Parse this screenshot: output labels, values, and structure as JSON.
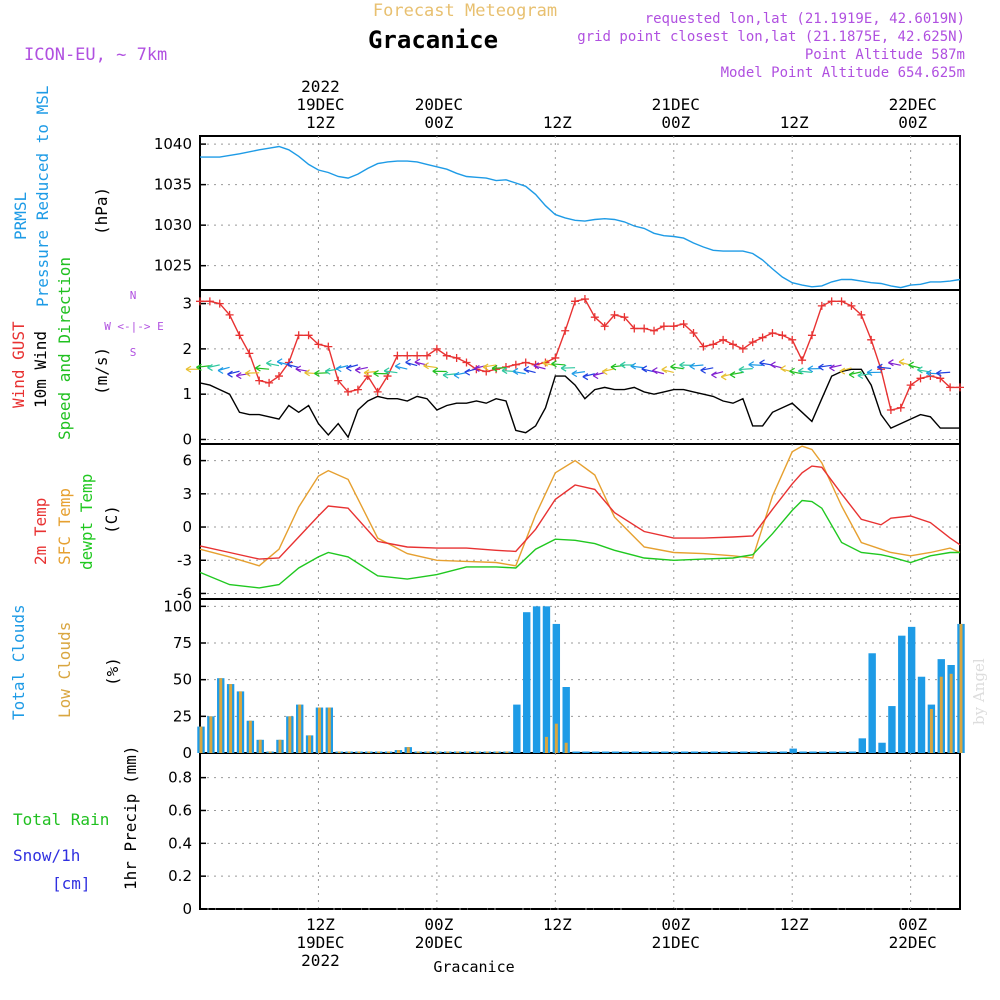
{
  "header": {
    "title": "Forecast Meteogram",
    "location": "Gracanice",
    "model": "ICON-EU, ~ 7km",
    "requested": "requested lon,lat (21.1919E, 42.6019N)",
    "gridpoint": "grid point closest lon,lat (21.1875E, 42.625N)",
    "altitude": "Point Altitude 587m",
    "model_altitude": "Model Point Altitude 654.625m",
    "credit": "by Angel",
    "footer": "Gracanice"
  },
  "time_axis": {
    "ticks": [
      {
        "hour": 12,
        "lines": [
          "2022",
          "19DEC",
          "12Z"
        ],
        "bottom": [
          "12Z",
          "19DEC",
          "2022"
        ]
      },
      {
        "hour": 24,
        "lines": [
          "20DEC",
          "00Z"
        ],
        "bottom": [
          "00Z",
          "20DEC"
        ]
      },
      {
        "hour": 36,
        "lines": [
          "12Z"
        ],
        "bottom": [
          "12Z"
        ]
      },
      {
        "hour": 48,
        "lines": [
          "21DEC",
          "00Z"
        ],
        "bottom": [
          "00Z",
          "21DEC"
        ]
      },
      {
        "hour": 60,
        "lines": [
          "12Z"
        ],
        "bottom": [
          "12Z"
        ]
      },
      {
        "hour": 72,
        "lines": [
          "22DEC",
          "00Z"
        ],
        "bottom": [
          "00Z",
          "22DEC"
        ]
      }
    ],
    "range_hours": [
      0,
      77
    ]
  },
  "panels": {
    "pressure": {
      "label1": "PRMSL",
      "label2": "Pressure Reduced to MSL",
      "unit": "(hPa)",
      "ticks": [
        "1025",
        "1030",
        "1035",
        "1040"
      ]
    },
    "wind": {
      "label_gust": "Wind GUST",
      "label_wind": "10m Wind",
      "label_dir": "Speed and Direction",
      "unit": "(m/s)",
      "ticks": [
        "0",
        "1",
        "2",
        "3"
      ],
      "compass_n": "N",
      "compass_s": "S",
      "compass_w": "W <-|-> E"
    },
    "temp": {
      "label_t2m": "2m Temp",
      "label_sfc": "SFC Temp",
      "label_dew": "dewpt Temp",
      "unit": "(C)",
      "ticks": [
        "-6",
        "-3",
        "0",
        "3",
        "6"
      ]
    },
    "clouds": {
      "label_total": "Total Clouds",
      "label_low": "Low Clouds",
      "unit": "(%)",
      "ticks": [
        "0",
        "25",
        "50",
        "75",
        "100"
      ]
    },
    "precip": {
      "label_rain": "Total Rain",
      "label_snow": "Snow/1h",
      "label_cm": "[cm]",
      "unit": "1hr Precip (mm)",
      "ticks": [
        "0",
        "0.2",
        "0.4",
        "0.6",
        "0.8"
      ]
    }
  },
  "colors": {
    "pressure": "#1e9be6",
    "gust": "#e83232",
    "wind": "#000000",
    "dir": "#20c020",
    "t2m": "#e83232",
    "sfc": "#e6a030",
    "dew": "#20c820",
    "total_clouds": "#1e9be6",
    "low_clouds": "#d9a640",
    "header_purple": "#b050e0",
    "title_gold": "#e8c070",
    "snow": "#3030e0"
  },
  "chart_data": [
    {
      "type": "line",
      "title": "PRMSL Pressure Reduced to MSL",
      "ylabel": "(hPa)",
      "ylim": [
        1022,
        1041
      ],
      "x": [
        0,
        2,
        4,
        6,
        7,
        8,
        9,
        10,
        11,
        12,
        13,
        14,
        15,
        16,
        17,
        18,
        19,
        20,
        21,
        22,
        23,
        24,
        25,
        26,
        27,
        28,
        29,
        30,
        31,
        32,
        33,
        34,
        35,
        36,
        37,
        38,
        39,
        40,
        41,
        42,
        43,
        44,
        45,
        46,
        47,
        48,
        49,
        50,
        51,
        52,
        53,
        54,
        55,
        56,
        57,
        58,
        59,
        60,
        61,
        62,
        63,
        64,
        65,
        66,
        67,
        68,
        69,
        70,
        71,
        72,
        73,
        74,
        75,
        76,
        77
      ],
      "series": [
        {
          "name": "PRMSL",
          "values": [
            1038.4,
            1038.4,
            1038.8,
            1039.3,
            1039.5,
            1039.7,
            1039.3,
            1038.5,
            1037.5,
            1036.8,
            1036.5,
            1036.0,
            1035.8,
            1036.3,
            1037.0,
            1037.6,
            1037.8,
            1037.9,
            1037.9,
            1037.8,
            1037.5,
            1037.2,
            1036.9,
            1036.4,
            1036.0,
            1035.9,
            1035.8,
            1035.5,
            1035.6,
            1035.2,
            1034.8,
            1033.8,
            1032.4,
            1031.3,
            1030.9,
            1030.6,
            1030.5,
            1030.7,
            1030.8,
            1030.7,
            1030.4,
            1029.9,
            1029.6,
            1029.0,
            1028.7,
            1028.6,
            1028.4,
            1027.8,
            1027.3,
            1026.9,
            1026.8,
            1026.8,
            1026.8,
            1026.5,
            1025.7,
            1024.6,
            1023.6,
            1022.9,
            1022.6,
            1022.4,
            1022.5,
            1023.0,
            1023.3,
            1023.3,
            1023.1,
            1022.9,
            1022.8,
            1022.5,
            1022.3,
            1022.6,
            1022.7,
            1023.0,
            1023.0,
            1023.1,
            1023.3
          ]
        }
      ]
    },
    {
      "type": "line",
      "title": "Wind GUST / 10m Wind",
      "ylabel": "(m/s)",
      "ylim": [
        -0.1,
        3.3
      ],
      "x": [
        0,
        1,
        2,
        3,
        4,
        5,
        6,
        7,
        8,
        9,
        10,
        11,
        12,
        13,
        14,
        15,
        16,
        17,
        18,
        19,
        20,
        21,
        22,
        23,
        24,
        25,
        26,
        27,
        28,
        29,
        30,
        31,
        32,
        33,
        34,
        35,
        36,
        37,
        38,
        39,
        40,
        41,
        42,
        43,
        44,
        45,
        46,
        47,
        48,
        49,
        50,
        51,
        52,
        53,
        54,
        55,
        56,
        57,
        58,
        59,
        60,
        61,
        62,
        63,
        64,
        65,
        66,
        67,
        68,
        69,
        70,
        71,
        72,
        73,
        74,
        75,
        76,
        77
      ],
      "series": [
        {
          "name": "Wind GUST",
          "values": [
            3.05,
            3.05,
            3.0,
            2.75,
            2.3,
            1.9,
            1.3,
            1.25,
            1.4,
            1.7,
            2.3,
            2.3,
            2.1,
            2.05,
            1.3,
            1.05,
            1.1,
            1.4,
            1.05,
            1.4,
            1.85,
            1.85,
            1.85,
            1.85,
            2.0,
            1.85,
            1.8,
            1.7,
            1.55,
            1.5,
            1.55,
            1.6,
            1.65,
            1.7,
            1.65,
            1.7,
            1.8,
            2.4,
            3.05,
            3.1,
            2.7,
            2.5,
            2.75,
            2.7,
            2.45,
            2.45,
            2.4,
            2.5,
            2.5,
            2.55,
            2.35,
            2.05,
            2.1,
            2.2,
            2.1,
            2.0,
            2.15,
            2.25,
            2.35,
            2.3,
            2.2,
            1.75,
            2.3,
            2.95,
            3.05,
            3.05,
            2.95,
            2.75,
            2.2,
            1.55,
            0.65,
            0.7,
            1.2,
            1.35,
            1.4,
            1.35,
            1.15,
            1.15
          ]
        },
        {
          "name": "10m Wind",
          "values": [
            1.25,
            1.2,
            1.1,
            1.0,
            0.6,
            0.55,
            0.55,
            0.5,
            0.45,
            0.75,
            0.6,
            0.75,
            0.35,
            0.1,
            0.35,
            0.05,
            0.65,
            0.85,
            0.95,
            0.9,
            0.9,
            0.85,
            0.95,
            0.9,
            0.65,
            0.75,
            0.8,
            0.8,
            0.85,
            0.8,
            0.9,
            0.85,
            0.2,
            0.15,
            0.3,
            0.7,
            1.4,
            1.4,
            1.2,
            0.9,
            1.1,
            1.15,
            1.1,
            1.1,
            1.15,
            1.05,
            1.0,
            1.05,
            1.1,
            1.1,
            1.05,
            1.0,
            0.95,
            0.85,
            0.8,
            0.9,
            0.3,
            0.3,
            0.6,
            0.7,
            0.8,
            0.6,
            0.4,
            0.9,
            1.4,
            1.5,
            1.55,
            1.55,
            1.2,
            0.55,
            0.25,
            0.35,
            0.45,
            0.55,
            0.5,
            0.25,
            0.25,
            0.25
          ]
        }
      ]
    },
    {
      "type": "line",
      "title": "2m Temp / SFC Temp / dewpt Temp",
      "ylabel": "(C)",
      "ylim": [
        -6.5,
        7.5
      ],
      "x": [
        0,
        3,
        6,
        8,
        10,
        12,
        13,
        15,
        18,
        21,
        24,
        27,
        30,
        32,
        34,
        36,
        38,
        40,
        42,
        45,
        48,
        51,
        54,
        56,
        58,
        60,
        61,
        62,
        63,
        65,
        67,
        69,
        70,
        72,
        74,
        76,
        77
      ],
      "series": [
        {
          "name": "2m Temp",
          "values": [
            -1.7,
            -2.3,
            -2.9,
            -2.8,
            -0.9,
            1.0,
            1.9,
            1.7,
            -1.3,
            -1.8,
            -1.9,
            -1.9,
            -2.1,
            -2.2,
            -0.2,
            2.5,
            3.8,
            3.4,
            1.3,
            -0.4,
            -1.0,
            -1.0,
            -0.9,
            -0.8,
            1.6,
            3.9,
            4.9,
            5.5,
            5.4,
            3.0,
            0.7,
            0.2,
            0.8,
            1.0,
            0.4,
            -1.0,
            -1.6
          ]
        },
        {
          "name": "SFC Temp",
          "values": [
            -2.0,
            -2.7,
            -3.5,
            -2.0,
            1.8,
            4.6,
            5.1,
            4.3,
            -1.0,
            -2.4,
            -3.0,
            -3.1,
            -3.2,
            -3.5,
            1.1,
            4.9,
            6.0,
            4.7,
            0.9,
            -1.8,
            -2.3,
            -2.4,
            -2.6,
            -2.8,
            2.8,
            6.8,
            7.3,
            7.0,
            5.8,
            1.9,
            -1.4,
            -2.0,
            -2.3,
            -2.6,
            -2.3,
            -1.9,
            -2.3
          ]
        },
        {
          "name": "dewpt Temp",
          "values": [
            -4.1,
            -5.2,
            -5.5,
            -5.2,
            -3.7,
            -2.7,
            -2.3,
            -2.7,
            -4.4,
            -4.7,
            -4.3,
            -3.6,
            -3.6,
            -3.7,
            -2.0,
            -1.1,
            -1.2,
            -1.5,
            -2.1,
            -2.8,
            -3.0,
            -2.9,
            -2.8,
            -2.5,
            -0.6,
            1.5,
            2.4,
            2.3,
            1.7,
            -1.4,
            -2.3,
            -2.5,
            -2.7,
            -3.2,
            -2.6,
            -2.3,
            -2.3
          ]
        }
      ]
    },
    {
      "type": "bar",
      "title": "Total Clouds / Low Clouds",
      "ylabel": "(%)",
      "ylim": [
        0,
        105
      ],
      "x": [
        0,
        1,
        2,
        3,
        4,
        5,
        6,
        7,
        8,
        9,
        10,
        11,
        12,
        13,
        14,
        15,
        16,
        17,
        18,
        19,
        20,
        21,
        22,
        23,
        24,
        25,
        26,
        27,
        28,
        29,
        30,
        31,
        32,
        33,
        34,
        35,
        36,
        37,
        38,
        39,
        40,
        41,
        42,
        43,
        44,
        45,
        46,
        47,
        48,
        49,
        50,
        51,
        52,
        53,
        54,
        55,
        56,
        57,
        58,
        59,
        60,
        61,
        62,
        63,
        64,
        65,
        66,
        67,
        68,
        69,
        70,
        71,
        72,
        73,
        74,
        75,
        76,
        77
      ],
      "series": [
        {
          "name": "Total Clouds",
          "values": [
            18,
            25,
            51,
            47,
            42,
            22,
            9,
            1,
            9,
            25,
            33,
            12,
            31,
            31,
            1,
            1,
            1,
            1,
            1,
            1,
            2,
            4,
            1,
            1,
            1,
            1,
            1,
            1,
            1,
            1,
            1,
            1,
            33,
            96,
            100,
            100,
            88,
            45,
            1,
            1,
            1,
            1,
            1,
            1,
            1,
            1,
            1,
            1,
            1,
            1,
            1,
            1,
            1,
            1,
            1,
            1,
            1,
            1,
            1,
            1,
            3,
            1,
            1,
            1,
            1,
            1,
            1,
            10,
            68,
            7,
            32,
            80,
            86,
            52,
            33,
            64,
            60,
            88
          ]
        },
        {
          "name": "Low Clouds",
          "values": [
            18,
            25,
            51,
            47,
            42,
            22,
            9,
            1,
            9,
            25,
            33,
            12,
            31,
            31,
            1,
            1,
            1,
            1,
            1,
            1,
            2,
            4,
            1,
            1,
            1,
            1,
            1,
            1,
            1,
            1,
            1,
            1,
            0,
            0,
            0,
            11,
            20,
            7,
            0,
            0,
            0,
            0,
            0,
            0,
            0,
            0,
            0,
            0,
            0,
            0,
            0,
            0,
            0,
            0,
            0,
            0,
            0,
            0,
            0,
            0,
            0,
            0,
            0,
            0,
            0,
            0,
            0,
            0,
            0,
            0,
            0,
            0,
            0,
            0,
            30,
            52,
            54,
            88
          ]
        }
      ]
    },
    {
      "type": "bar",
      "title": "Total Rain / Snow",
      "ylabel": "1hr Precip (mm)",
      "ylim": [
        0,
        0.95
      ],
      "x": [
        0,
        77
      ],
      "series": [
        {
          "name": "Total Rain",
          "values": [
            0,
            0
          ]
        }
      ]
    }
  ]
}
